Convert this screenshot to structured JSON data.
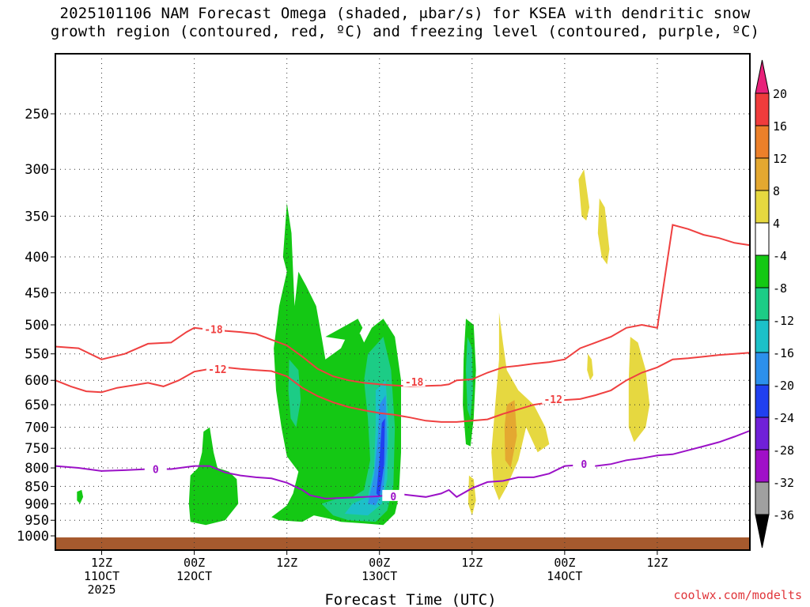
{
  "chart_data": {
    "type": "heatmap",
    "title": {
      "line1": "2025101106 NAM Forecast Omega (shaded, μbar/s) for KSEA with dendritic snow",
      "line2": "growth region (contoured, red, ºC) and freezing level (contoured, purple, ºC)"
    },
    "xlabel": "Forecast Time (UTC)",
    "ylabel": "",
    "x_unit": "hours since 2025-10-11 06Z",
    "xlim": [
      0,
      90
    ],
    "y_levels": [
      250,
      300,
      350,
      400,
      450,
      500,
      550,
      600,
      650,
      700,
      750,
      800,
      850,
      900,
      950,
      1000
    ],
    "ylim": [
      1020,
      200
    ],
    "x_ticks": [
      {
        "x": 6,
        "label": "12Z",
        "sub": "11OCT",
        "sub2": "2025"
      },
      {
        "x": 18,
        "label": "00Z",
        "sub": "12OCT",
        "sub2": ""
      },
      {
        "x": 30,
        "label": "12Z",
        "sub": "",
        "sub2": ""
      },
      {
        "x": 42,
        "label": "00Z",
        "sub": "13OCT",
        "sub2": ""
      },
      {
        "x": 54,
        "label": "12Z",
        "sub": "",
        "sub2": ""
      },
      {
        "x": 66,
        "label": "00Z",
        "sub": "14OCT",
        "sub2": ""
      },
      {
        "x": 78,
        "label": "12Z",
        "sub": "",
        "sub2": ""
      }
    ],
    "grid": true,
    "colorbar": {
      "position": "right",
      "labels": [
        "20",
        "16",
        "12",
        "8",
        "4",
        "-4",
        "-8",
        "-12",
        "-16",
        "-20",
        "-24",
        "-28",
        "-32",
        "-36"
      ],
      "colors": [
        "#f03c3c",
        "#ec802a",
        "#e4a830",
        "#e6d840",
        "#ffffff",
        "#14c814",
        "#1ccc86",
        "#1cc0c8",
        "#2c90ec",
        "#2040f0",
        "#7020d8",
        "#a010c8",
        "#a0a0a0"
      ],
      "top_arrow_color": "#e8227a",
      "bottom_arrow_color": "#000000"
    },
    "series": [
      {
        "name": "-18",
        "color": "#ef4040",
        "label_at": [
          20.5,
          507
        ],
        "x": [
          0,
          3,
          6,
          9,
          12,
          15,
          17,
          18,
          20,
          22,
          24,
          26,
          28,
          30,
          32,
          34,
          36,
          38,
          40,
          42,
          44,
          46,
          48,
          50,
          51,
          52,
          54,
          56,
          58,
          60,
          62,
          64,
          66,
          68,
          70,
          72,
          74,
          76,
          78,
          80,
          82,
          84,
          86,
          88,
          90
        ],
        "y": [
          537,
          540,
          560,
          550,
          532,
          530,
          512,
          505,
          508,
          510,
          512,
          515,
          525,
          535,
          555,
          578,
          592,
          600,
          605,
          608,
          610,
          612,
          611,
          610,
          608,
          600,
          598,
          585,
          575,
          572,
          568,
          565,
          560,
          540,
          530,
          520,
          505,
          500,
          505,
          360,
          365,
          372,
          376,
          382,
          385
        ]
      },
      {
        "name": "-12",
        "color": "#ef4040",
        "label_at": [
          21,
          578
        ],
        "x": [
          0,
          2,
          4,
          6,
          8,
          10,
          12,
          14,
          16,
          18,
          20,
          22,
          24,
          26,
          28,
          30,
          32,
          34,
          36,
          38,
          40,
          42,
          44,
          46,
          48,
          50,
          52,
          54,
          56,
          58,
          60,
          62,
          64,
          66,
          68,
          70,
          72,
          74,
          76,
          78,
          80,
          82,
          84,
          86,
          88,
          90
        ],
        "y": [
          600,
          612,
          622,
          624,
          615,
          610,
          605,
          612,
          600,
          583,
          578,
          575,
          578,
          580,
          582,
          592,
          615,
          632,
          645,
          655,
          662,
          668,
          672,
          678,
          685,
          688,
          688,
          685,
          682,
          670,
          660,
          650,
          645,
          640,
          638,
          630,
          620,
          600,
          585,
          575,
          560,
          558,
          555,
          552,
          550,
          548
        ]
      },
      {
        "name": "0",
        "color": "#9b11c7",
        "label_at": [
          13,
          803
        ],
        "x": [
          0,
          3,
          6,
          9,
          12,
          15,
          18,
          20,
          22,
          24,
          26,
          28,
          30,
          32,
          33,
          35,
          38,
          40,
          42,
          44,
          46,
          48,
          50,
          51,
          52,
          54,
          56,
          58,
          60,
          62,
          64,
          66,
          68,
          70,
          72,
          74,
          76,
          78,
          80,
          82,
          84,
          86,
          88,
          90
        ],
        "y": [
          795,
          800,
          808,
          806,
          803,
          803,
          795,
          795,
          812,
          820,
          825,
          828,
          840,
          860,
          875,
          885,
          882,
          880,
          878,
          870,
          875,
          880,
          870,
          860,
          880,
          855,
          838,
          835,
          825,
          825,
          815,
          795,
          792,
          795,
          790,
          780,
          775,
          768,
          765,
          755,
          745,
          735,
          722,
          708
        ]
      }
    ],
    "omega_regions": [
      {
        "level": "-4",
        "note": "light green",
        "approx_x_range": [
          30,
          46
        ],
        "approx_p_range": [
          330,
          970
        ]
      },
      {
        "level": "-24",
        "note": "core minimum",
        "approx_x": 41.5,
        "approx_p": 780
      },
      {
        "level": "4",
        "note": "yellow ascent-free",
        "approx_x_range": [
          57,
          64
        ],
        "approx_p_range": [
          480,
          880
        ]
      }
    ],
    "ground": {
      "color": "#a65a2e",
      "p_top": 1005
    }
  },
  "credit": "coolwx.com/modelts"
}
